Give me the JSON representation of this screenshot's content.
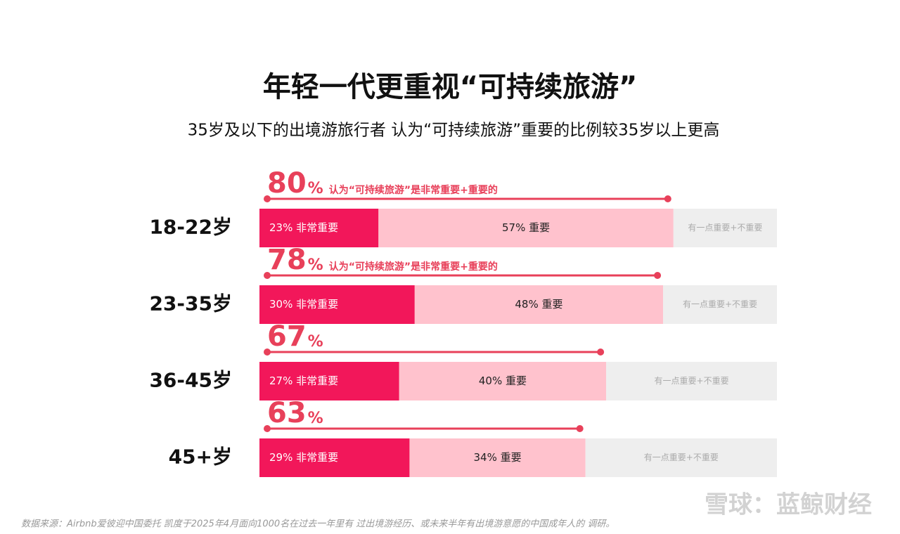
{
  "chart_data": {
    "type": "stacked_bar_horizontal",
    "title": "年轻一代更重视“可持续旅游”",
    "subtitle": "35岁及以下的出境游旅行者 认为“可持续旅游”重要的比例较35岁以上更高",
    "categories": [
      "18-22岁",
      "23-35岁",
      "36-45岁",
      "45+岁"
    ],
    "xlim": [
      0,
      100
    ],
    "series": [
      {
        "name": "非常重要",
        "color": "#f2175a",
        "values": [
          23,
          30,
          27,
          29
        ],
        "value_labels": [
          "23% 非常重要",
          "30% 非常重要",
          "27% 非常重要",
          "29% 非常重要"
        ]
      },
      {
        "name": "重要",
        "color": "#ffc2cd",
        "values": [
          57,
          48,
          40,
          34
        ],
        "value_labels": [
          "57% 重要",
          "48% 重要",
          "40% 重要",
          "34% 重要"
        ]
      },
      {
        "name": "有一点重要+不重要",
        "color": "#eeeeee",
        "values": [
          20,
          22,
          33,
          37
        ]
      }
    ],
    "totals": {
      "values": [
        80,
        78,
        67,
        63
      ],
      "unit": "%",
      "color": "#e8405a",
      "notes": [
        "认为“可持续旅游”是非常重要+重要的",
        "认为“可持续旅游”是非常重要+重要的",
        null,
        null
      ]
    },
    "source": "数据来源：Airbnb爱彼迎中国委托 凯度于2025年4月面向1000名在过去一年里有 过出境游经历、或未来半年有出境游意愿的中国成年人的  调研。",
    "watermark": "雪球：蓝鲸财经"
  }
}
